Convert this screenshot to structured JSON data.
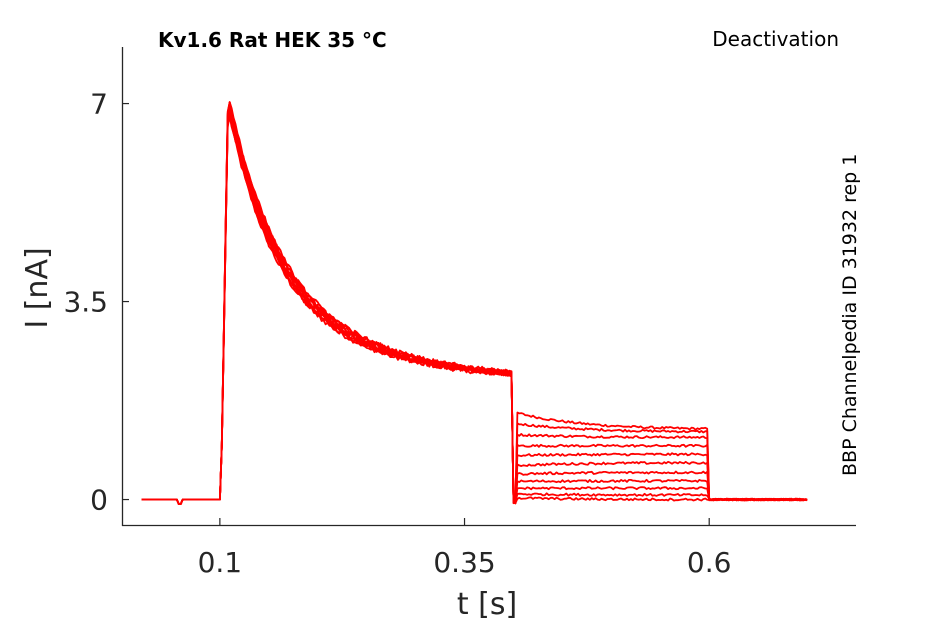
{
  "chart_data": {
    "type": "line",
    "title": "Kv1.6  Rat  HEK  35 °C",
    "protocol_label": "Deactivation",
    "side_label": "BBP Channelpedia ID 31932 rep 1",
    "xlabel": "t [s]",
    "ylabel": "I [nA]",
    "xlim": [
      -0.0,
      0.75
    ],
    "ylim": [
      -0.45,
      8.0
    ],
    "x_ticks": [
      0.1,
      0.35,
      0.6
    ],
    "x_tick_labels": [
      "0.1",
      "0.35",
      "0.6"
    ],
    "y_ticks": [
      0,
      3.5,
      7
    ],
    "y_tick_labels": [
      "0",
      "3.5",
      "7"
    ],
    "grid": false,
    "legend": "none",
    "color": "#ff0000",
    "pulse_on": 0.101,
    "step_on": 0.4,
    "step_off": 0.6,
    "end": 0.7,
    "peak": 7.0,
    "level_at_step": 2.1,
    "tail_levels": [
      1.55,
      1.35,
      1.15,
      0.95,
      0.78,
      0.6,
      0.45,
      0.32,
      0.2,
      0.1,
      0.03
    ],
    "tail_end_levels": [
      1.25,
      1.2,
      1.1,
      0.95,
      0.8,
      0.65,
      0.48,
      0.33,
      0.2,
      0.08,
      0.0
    ]
  }
}
